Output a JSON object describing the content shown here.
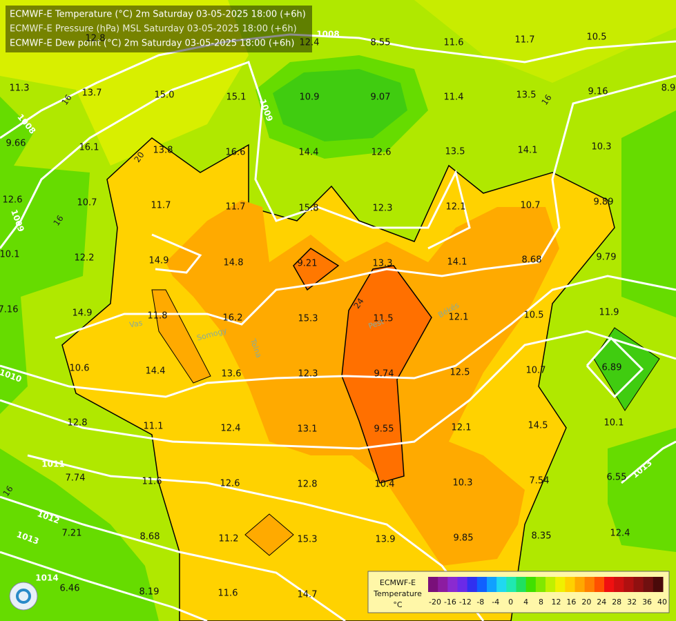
{
  "header": {
    "lines": [
      "ECMWF-E Temperature (°C) 2m Saturday 03-05-2025 18:00 (+6h)",
      "ECMWF-E Pressure (hPa) MSL Saturday 03-05-2025 18:00 (+6h)",
      "ECMWF-E Dew point (°C) 2m Saturday 03-05-2025 18:00 (+6h)"
    ]
  },
  "dewpoint_labels": [
    "12.8",
    "12.4",
    "8.55",
    "11.6",
    "11.7",
    "10.5",
    "11.3",
    "13.7",
    "15.0",
    "15.1",
    "10.9",
    "9.07",
    "11.4",
    "13.5",
    "9.16",
    "8.9",
    "9.66",
    "16.1",
    "13.8",
    "16.6",
    "14.4",
    "12.6",
    "13.5",
    "14.1",
    "10.3",
    "12.6",
    "10.7",
    "11.7",
    "11.7",
    "15.8",
    "12.3",
    "12.1",
    "10.7",
    "9.89",
    "10.1",
    "12.2",
    "14.9",
    "14.8",
    "9.21",
    "13.3",
    "14.1",
    "8.68",
    "9.79",
    "7.16",
    "14.9",
    "11.8",
    "16.2",
    "15.3",
    "11.5",
    "12.1",
    "10.5",
    "11.9",
    "10.6",
    "14.4",
    "13.6",
    "12.3",
    "9.74",
    "12.5",
    "10.7",
    "6.89",
    "12.8",
    "11.1",
    "12.4",
    "13.1",
    "9.55",
    "12.1",
    "14.5",
    "10.1",
    "7.74",
    "11.6",
    "12.6",
    "12.8",
    "10.4",
    "10.3",
    "7.54",
    "6.55",
    "7.21",
    "8.68",
    "11.2",
    "15.3",
    "13.9",
    "9.85",
    "8.35",
    "12.4",
    "6.46",
    "8.19",
    "11.6",
    "14.7"
  ],
  "isobar_labels": [
    "1008",
    "1008",
    "1009",
    "1009",
    "1010",
    "1011",
    "1012",
    "1013",
    "1014",
    "1013"
  ],
  "contour_labels": [
    "16",
    "20",
    "16",
    "24",
    "16",
    "16"
  ],
  "places": [
    "Vas",
    "Somogy",
    "Tolna",
    "Pest",
    "Békés"
  ],
  "legend": {
    "title": "ECMWF-E",
    "subtitle": "Temperature",
    "unit": "°C",
    "ticks": [
      "-20",
      "-16",
      "-12",
      "-8",
      "-4",
      "0",
      "4",
      "8",
      "12",
      "16",
      "20",
      "24",
      "28",
      "32",
      "36",
      "40"
    ]
  }
}
